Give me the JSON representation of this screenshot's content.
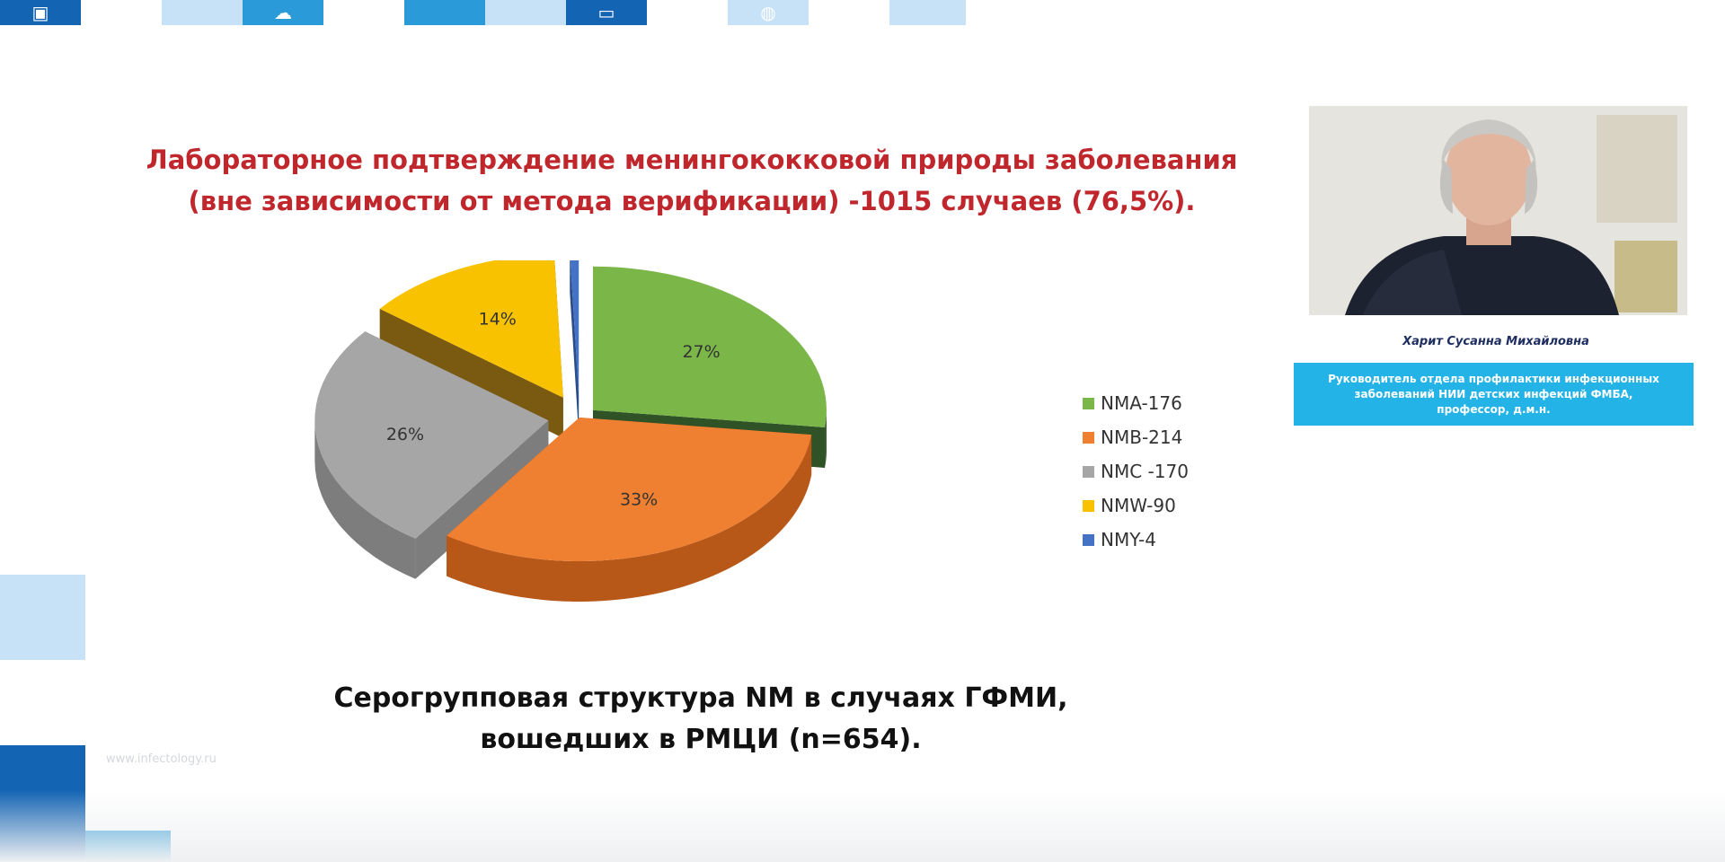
{
  "slide": {
    "title_line1": "Лабораторное подтверждение менингококковой природы заболевания",
    "title_line2": "(вне зависимости от метода верификации) -1015 случаев (76,5%).",
    "subtitle_line1": "Серогрупповая структура NM в случаях ГФМИ,",
    "subtitle_line2": "вошедших в РМЦИ (n=654).",
    "faint_text": "www.infectology.ru"
  },
  "speaker": {
    "name": "Харит Сусанна Михайловна",
    "info_line1": "Руководитель отдела профилактики инфекционных",
    "info_line2": "заболеваний НИИ детских инфекций ФМБА,",
    "info_line3": "профессор, д.м.н."
  },
  "chart_data": {
    "type": "pie",
    "title": "",
    "legend_position": "right",
    "slices": [
      {
        "label": "NMA-176",
        "value": 176,
        "percent_label": "27%",
        "color": "#7ab648",
        "side_color": "#2f5226"
      },
      {
        "label": "NMB-214",
        "value": 214,
        "percent_label": "33%",
        "color": "#ef8032",
        "side_color": "#b85818"
      },
      {
        "label": "NMC -170",
        "value": 170,
        "percent_label": "26%",
        "color": "#a6a6a6",
        "side_color": "#7d7d7d"
      },
      {
        "label": "NMW-90",
        "value": 90,
        "percent_label": "14%",
        "color": "#f9c200",
        "side_color": "#7a5a10"
      },
      {
        "label": "NMY-4",
        "value": 4,
        "percent_label": "1%",
        "color": "#4472c4",
        "side_color": "#2a4d8a"
      }
    ]
  },
  "colors": {
    "title": "#c0272d",
    "banner": "#23b3e6",
    "brand_dark": "#1464b4",
    "brand_light": "#c7e1f6"
  }
}
